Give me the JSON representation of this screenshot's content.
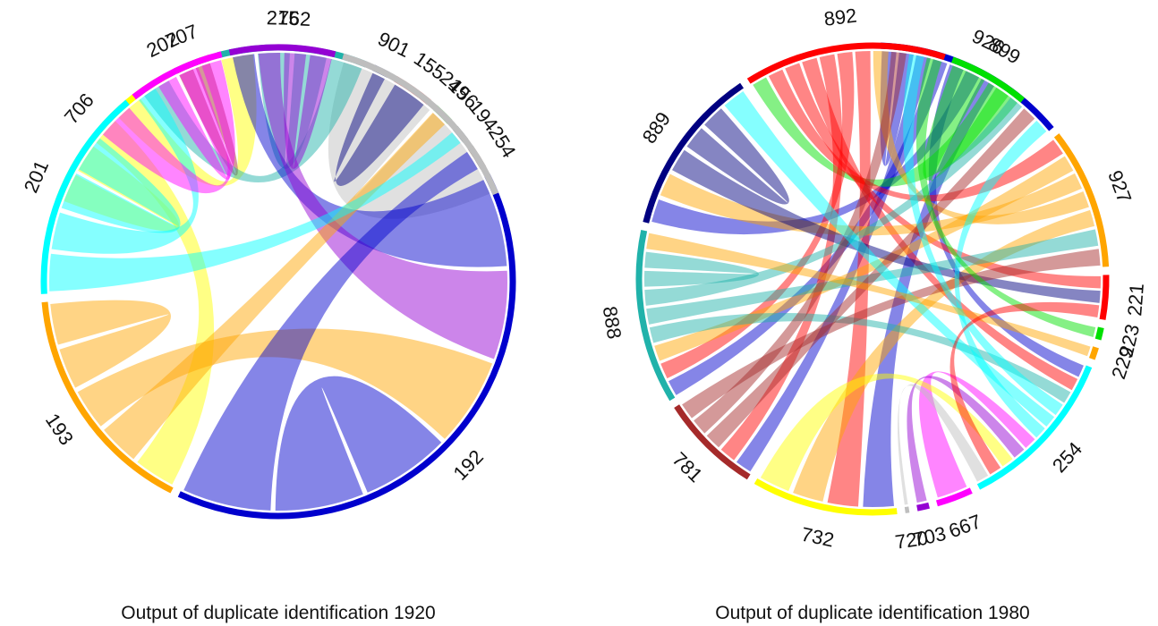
{
  "diagrams": [
    {
      "caption": "Output of duplicate identification  1920",
      "segments": [
        {
          "label": "706",
          "color": "#FFFF00"
        },
        {
          "label": "707",
          "color": "#A52A2A"
        },
        {
          "label": "762",
          "color": "#20B2AA"
        },
        {
          "label": "901",
          "color": "#000080"
        },
        {
          "label": "155",
          "color": "#FF0000"
        },
        {
          "label": "156",
          "color": "#00E000"
        },
        {
          "label": "194",
          "color": "#1F3A4F"
        },
        {
          "label": "254",
          "color": "#8B6355"
        },
        {
          "label": "192",
          "color": "#0000CD"
        },
        {
          "label": "193",
          "color": "#FFA500"
        },
        {
          "label": "201",
          "color": "#00FFFF"
        },
        {
          "label": "202",
          "color": "#FF00FF"
        },
        {
          "label": "215",
          "color": "#9400D3"
        },
        {
          "label": "249",
          "color": "#BEBEBE"
        }
      ],
      "chords": [
        {
          "from": "249",
          "to": "249",
          "color": "#BEBEBE"
        },
        {
          "from": "706",
          "to": "706",
          "color": "#FFFF00"
        },
        {
          "from": "706",
          "to": "193",
          "color": "#FFFF00"
        },
        {
          "from": "706",
          "to": "762",
          "color": "#FFFF00"
        },
        {
          "from": "707",
          "to": "707",
          "color": "#A52A2A"
        },
        {
          "from": "762",
          "to": "762",
          "color": "#20B2AA"
        },
        {
          "from": "762",
          "to": "706",
          "color": "#20B2AA"
        },
        {
          "from": "901",
          "to": "155",
          "color": "#000080"
        },
        {
          "from": "215",
          "to": "192",
          "color": "#0000CD"
        },
        {
          "from": "215",
          "to": "192",
          "color": "#9400D3"
        },
        {
          "from": "215",
          "to": "215",
          "color": "#9400D3"
        },
        {
          "from": "193",
          "to": "156",
          "color": "#FFA500"
        },
        {
          "from": "193",
          "to": "192",
          "color": "#FFA500"
        },
        {
          "from": "193",
          "to": "193",
          "color": "#FFA500"
        },
        {
          "from": "194",
          "to": "201",
          "color": "#00FFFF"
        },
        {
          "from": "201",
          "to": "202",
          "color": "#00FFFF"
        },
        {
          "from": "201",
          "to": "201",
          "color": "#00FFFF"
        },
        {
          "from": "202",
          "to": "202",
          "color": "#FF00FF"
        },
        {
          "from": "202",
          "to": "201",
          "color": "#FF00FF"
        },
        {
          "from": "192",
          "to": "192",
          "color": "#0000CD"
        },
        {
          "from": "254",
          "to": "192",
          "color": "#0000CD"
        }
      ]
    },
    {
      "caption": "Output of duplicate identification  1980",
      "segments": [
        {
          "label": "926",
          "color": "#0000CD"
        },
        {
          "label": "927",
          "color": "#FFA500"
        },
        {
          "label": "221",
          "color": "#FF0000"
        },
        {
          "label": "223",
          "color": "#00E000"
        },
        {
          "label": "229",
          "color": "#FFA500"
        },
        {
          "label": "254",
          "color": "#00FFFF"
        },
        {
          "label": "667",
          "color": "#FF00FF"
        },
        {
          "label": "703",
          "color": "#9400D3"
        },
        {
          "label": "720",
          "color": "#BEBEBE"
        },
        {
          "label": "732",
          "color": "#FFFF00"
        },
        {
          "label": "781",
          "color": "#A52A2A"
        },
        {
          "label": "888",
          "color": "#20B2AA"
        },
        {
          "label": "889",
          "color": "#000080"
        },
        {
          "label": "892",
          "color": "#FF0000"
        },
        {
          "label": "899",
          "color": "#00E000"
        }
      ],
      "chords": [
        {
          "from": "926",
          "to": "926",
          "color": "#0000CD"
        },
        {
          "from": "926",
          "to": "781",
          "color": "#0000CD"
        },
        {
          "from": "926",
          "to": "888",
          "color": "#0000CD"
        },
        {
          "from": "926",
          "to": "254",
          "color": "#0000CD"
        },
        {
          "from": "926",
          "to": "889",
          "color": "#0000CD"
        },
        {
          "from": "926",
          "to": "732",
          "color": "#0000CD"
        },
        {
          "from": "899",
          "to": "926",
          "color": "#00E000"
        },
        {
          "from": "899",
          "to": "892",
          "color": "#00E000"
        },
        {
          "from": "892",
          "to": "927",
          "color": "#FF0000"
        },
        {
          "from": "892",
          "to": "221",
          "color": "#FF0000"
        },
        {
          "from": "892",
          "to": "254",
          "color": "#FF0000"
        },
        {
          "from": "892",
          "to": "781",
          "color": "#FF0000"
        },
        {
          "from": "892",
          "to": "888",
          "color": "#FF0000"
        },
        {
          "from": "892",
          "to": "732",
          "color": "#FF0000"
        },
        {
          "from": "927",
          "to": "888",
          "color": "#FFA500"
        },
        {
          "from": "927",
          "to": "889",
          "color": "#FFA500"
        },
        {
          "from": "927",
          "to": "892",
          "color": "#FFA500"
        },
        {
          "from": "927",
          "to": "732",
          "color": "#FFA500"
        },
        {
          "from": "889",
          "to": "221",
          "color": "#000080"
        },
        {
          "from": "889",
          "to": "889",
          "color": "#000080"
        },
        {
          "from": "888",
          "to": "254",
          "color": "#20B2AA"
        },
        {
          "from": "888",
          "to": "927",
          "color": "#20B2AA"
        },
        {
          "from": "888",
          "to": "926",
          "color": "#20B2AA"
        },
        {
          "from": "888",
          "to": "888",
          "color": "#20B2AA"
        },
        {
          "from": "781",
          "to": "926",
          "color": "#A52A2A"
        },
        {
          "from": "781",
          "to": "892",
          "color": "#A52A2A"
        },
        {
          "from": "781",
          "to": "927",
          "color": "#A52A2A"
        },
        {
          "from": "254",
          "to": "892",
          "color": "#00FFFF"
        },
        {
          "from": "254",
          "to": "889",
          "color": "#00FFFF"
        },
        {
          "from": "254",
          "to": "926",
          "color": "#00FFFF"
        },
        {
          "from": "667",
          "to": "254",
          "color": "#FF00FF"
        },
        {
          "from": "703",
          "to": "254",
          "color": "#9400D3"
        },
        {
          "from": "732",
          "to": "254",
          "color": "#FFFF00"
        },
        {
          "from": "229",
          "to": "888",
          "color": "#FFA500"
        },
        {
          "from": "223",
          "to": "892",
          "color": "#00E000"
        },
        {
          "from": "221",
          "to": "254",
          "color": "#FF0000"
        },
        {
          "from": "720",
          "to": "254",
          "color": "#BEBEBE"
        }
      ]
    }
  ]
}
